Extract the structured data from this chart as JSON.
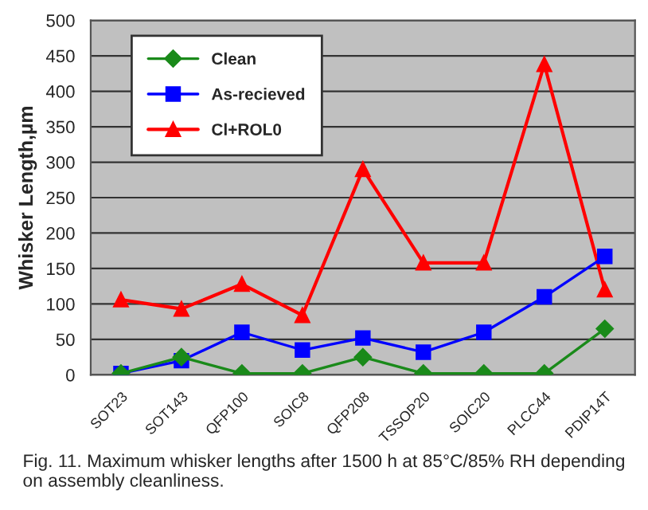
{
  "chart_data": {
    "type": "line",
    "ylabel": "Whisker Length,µm",
    "categories": [
      "SOT23",
      "SOT143",
      "QFP100",
      "SOIC8",
      "QFP208",
      "TSSOP20",
      "SOIC20",
      "PLCC44",
      "PDIP14T"
    ],
    "series": [
      {
        "name": "Clean",
        "color": "#1a8a1a",
        "marker": "diamond",
        "values": [
          2,
          25,
          2,
          2,
          25,
          2,
          2,
          2,
          65
        ]
      },
      {
        "name": "As-recieved",
        "color": "#0000ff",
        "marker": "square",
        "values": [
          2,
          20,
          60,
          35,
          52,
          32,
          60,
          110,
          167
        ]
      },
      {
        "name": "Cl+ROL0",
        "color": "#ff0000",
        "marker": "triangle",
        "values": [
          106,
          93,
          128,
          84,
          290,
          158,
          158,
          438,
          120
        ]
      }
    ],
    "ylim": [
      0,
      500
    ],
    "yticks": [
      0,
      50,
      100,
      150,
      200,
      250,
      300,
      350,
      400,
      450,
      500
    ],
    "grid": "y",
    "legend": "top left",
    "line_style": "solid",
    "annotations": [
      "Fig. 11. Maximum whisker lengths after 1500 h at 85°C/85% RH depending on assembly cleanliness."
    ]
  }
}
